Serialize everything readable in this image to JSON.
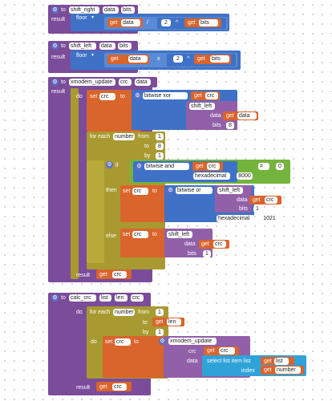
{
  "blocks": {
    "shift_right": {
      "to": "to",
      "name": "shift_right",
      "p1": "data",
      "p2": "bits",
      "result": "result",
      "floor": "floor",
      "get1": "get",
      "var1": "data",
      "op_div": "/",
      "two": "2",
      "op_pow": "^",
      "get2": "get",
      "var2": "bits"
    },
    "shift_left": {
      "to": "to",
      "name": "shift_left",
      "p1": "data",
      "p2": "bits",
      "result": "result",
      "floor": "floor",
      "get1": "get",
      "var1": "data",
      "op_mul": "x",
      "two": "2",
      "op_pow": "^",
      "get2": "get",
      "var2": "bits"
    },
    "xmodem_update": {
      "to": "to",
      "name": "xmodem_update",
      "p1": "crc",
      "p2": "data",
      "result": "result",
      "do": "do",
      "set1": "set",
      "set1_var": "crc",
      "set1_to": "to",
      "bitxor": "bitwise xor",
      "get_crc": "get",
      "crc_var": "crc",
      "shift_left": "shift_left",
      "data_lbl": "data",
      "get_data": "get",
      "data_var": "data",
      "bits_lbl": "bits",
      "eight": "8",
      "for_each": "for each",
      "number_var": "number",
      "from": "from",
      "from_val": "1",
      "to_lbl": "to",
      "to_val": "8",
      "by": "by",
      "by_val": "1",
      "do2": "do",
      "if": "if",
      "bitand": "bitwise and",
      "get_crc2": "get",
      "crc_var2": "crc",
      "neq": "≠",
      "zero": "0",
      "hexadecimal": "hexadecimal",
      "hex1": "8000",
      "then": "then",
      "set2": "set",
      "set2_var": "crc",
      "set2_to": "to",
      "bitor": "bitwise or",
      "shift_left2": "shift_left",
      "data_lbl2": "data",
      "get_crc3": "get",
      "crc_var3": "crc",
      "bits_lbl2": "bits",
      "one": "1",
      "hexadecimal2": "hexadecimal",
      "hex2": "1021",
      "else": "else",
      "set3": "set",
      "set3_var": "crc",
      "set3_to": "to",
      "shift_left3": "shift_left",
      "data_lbl3": "data",
      "get_crc4": "get",
      "crc_var4": "crc",
      "bits_lbl3": "bits",
      "one2": "1",
      "result_get": "get",
      "result_var": "crc"
    },
    "calc_crc": {
      "to": "to",
      "name": "calc_crc",
      "p1": "list",
      "p2": "len",
      "p3": "crc",
      "do": "do",
      "for_each": "for each",
      "number_var": "number",
      "from": "from",
      "from_val": "1",
      "to_lbl": "to",
      "get_len": "get",
      "len_var": "len",
      "by": "by",
      "by_val": "1",
      "do2": "do",
      "set": "set",
      "set_var": "crc",
      "set_to": "to",
      "call": "xmodem_update",
      "crc_lbl": "crc",
      "get_crc": "get",
      "crc_var": "crc",
      "data_lbl": "data",
      "select": "select list item  list",
      "get_list": "get",
      "list_var": "list",
      "index": "index",
      "get_number": "get",
      "number_var2": "number",
      "result": "result",
      "result_get": "get",
      "result_var": "crc"
    }
  },
  "colors": {
    "procedure": "#7b4c9a",
    "math": "#3f72c6",
    "variable": "#d9642c",
    "control": "#a89a30",
    "logic": "#74b43c",
    "list": "#2fa3d8"
  }
}
